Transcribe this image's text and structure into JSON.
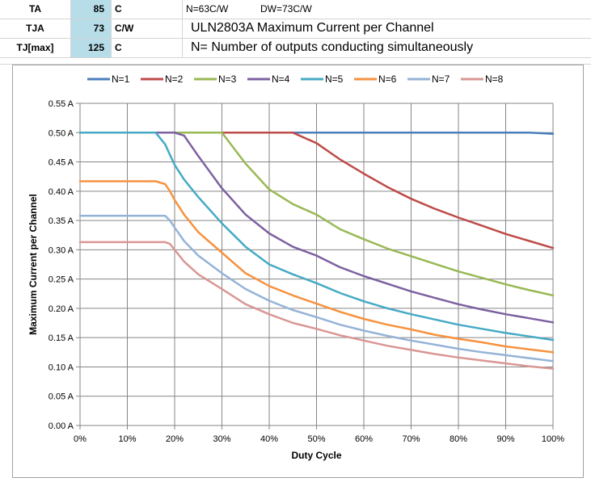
{
  "sheet": {
    "ta": {
      "label": "TA",
      "value": "85",
      "unit": "C"
    },
    "tja": {
      "label": "TJA",
      "value": "73",
      "unit": "C/W"
    },
    "tjmax": {
      "label": "TJ[max]",
      "value": "125",
      "unit": "C"
    },
    "note_n": "N=63C/W",
    "note_dw": "DW=73C/W",
    "title": "ULN2803A Maximum Current per Channel",
    "subtitle": "N= Number of outputs conducting simultaneously"
  },
  "chart_data": {
    "type": "line",
    "xlabel": "Duty Cycle",
    "ylabel": "Maximum Current per Channel",
    "xlim": [
      0,
      100
    ],
    "ylim": [
      0,
      0.55
    ],
    "x_ticks": [
      "0%",
      "10%",
      "20%",
      "30%",
      "40%",
      "50%",
      "60%",
      "70%",
      "80%",
      "90%",
      "100%"
    ],
    "y_ticks": [
      "0.00 A",
      "0.05 A",
      "0.10 A",
      "0.15 A",
      "0.20 A",
      "0.25 A",
      "0.30 A",
      "0.35 A",
      "0.40 A",
      "0.45 A",
      "0.50 A",
      "0.55 A"
    ],
    "grid": true,
    "legend": "top",
    "x": [
      0,
      10,
      16,
      18,
      19,
      20,
      22,
      25,
      30,
      35,
      40,
      45,
      50,
      55,
      60,
      65,
      70,
      75,
      80,
      85,
      90,
      95,
      100
    ],
    "series": [
      {
        "name": "N=1",
        "color": "#4a7ebb",
        "values": [
          0.5,
          0.5,
          0.5,
          0.5,
          0.5,
          0.5,
          0.5,
          0.5,
          0.5,
          0.5,
          0.5,
          0.5,
          0.5,
          0.5,
          0.5,
          0.5,
          0.5,
          0.5,
          0.5,
          0.5,
          0.5,
          0.5,
          0.498
        ]
      },
      {
        "name": "N=2",
        "color": "#be4b48",
        "values": [
          0.5,
          0.5,
          0.5,
          0.5,
          0.5,
          0.5,
          0.5,
          0.5,
          0.5,
          0.5,
          0.5,
          0.5,
          0.482,
          0.454,
          0.43,
          0.407,
          0.387,
          0.37,
          0.355,
          0.341,
          0.327,
          0.315,
          0.303
        ]
      },
      {
        "name": "N=3",
        "color": "#98b954",
        "values": [
          0.5,
          0.5,
          0.5,
          0.5,
          0.5,
          0.5,
          0.5,
          0.5,
          0.5,
          0.447,
          0.403,
          0.378,
          0.36,
          0.335,
          0.318,
          0.302,
          0.289,
          0.276,
          0.263,
          0.252,
          0.241,
          0.231,
          0.222
        ]
      },
      {
        "name": "N=4",
        "color": "#7d60a0",
        "values": [
          0.5,
          0.5,
          0.5,
          0.5,
          0.5,
          0.5,
          0.495,
          0.46,
          0.405,
          0.36,
          0.328,
          0.305,
          0.29,
          0.27,
          0.255,
          0.242,
          0.229,
          0.218,
          0.207,
          0.198,
          0.19,
          0.183,
          0.176
        ]
      },
      {
        "name": "N=5",
        "color": "#46aac5",
        "values": [
          0.5,
          0.5,
          0.5,
          0.48,
          0.462,
          0.445,
          0.42,
          0.39,
          0.345,
          0.305,
          0.275,
          0.258,
          0.243,
          0.226,
          0.212,
          0.2,
          0.19,
          0.181,
          0.172,
          0.165,
          0.158,
          0.152,
          0.146
        ]
      },
      {
        "name": "N=6",
        "color": "#f69240",
        "values": [
          0.417,
          0.417,
          0.417,
          0.412,
          0.4,
          0.385,
          0.36,
          0.33,
          0.295,
          0.26,
          0.238,
          0.222,
          0.208,
          0.194,
          0.182,
          0.172,
          0.164,
          0.155,
          0.148,
          0.142,
          0.135,
          0.13,
          0.125
        ]
      },
      {
        "name": "N=7",
        "color": "#95b3d7",
        "values": [
          0.358,
          0.358,
          0.358,
          0.358,
          0.35,
          0.338,
          0.315,
          0.29,
          0.26,
          0.233,
          0.213,
          0.197,
          0.185,
          0.172,
          0.162,
          0.153,
          0.145,
          0.138,
          0.131,
          0.125,
          0.12,
          0.115,
          0.11
        ]
      },
      {
        "name": "N=8",
        "color": "#d99694",
        "values": [
          0.313,
          0.313,
          0.313,
          0.313,
          0.31,
          0.3,
          0.28,
          0.258,
          0.233,
          0.207,
          0.19,
          0.175,
          0.165,
          0.154,
          0.145,
          0.136,
          0.129,
          0.122,
          0.116,
          0.111,
          0.106,
          0.101,
          0.097
        ]
      }
    ]
  }
}
